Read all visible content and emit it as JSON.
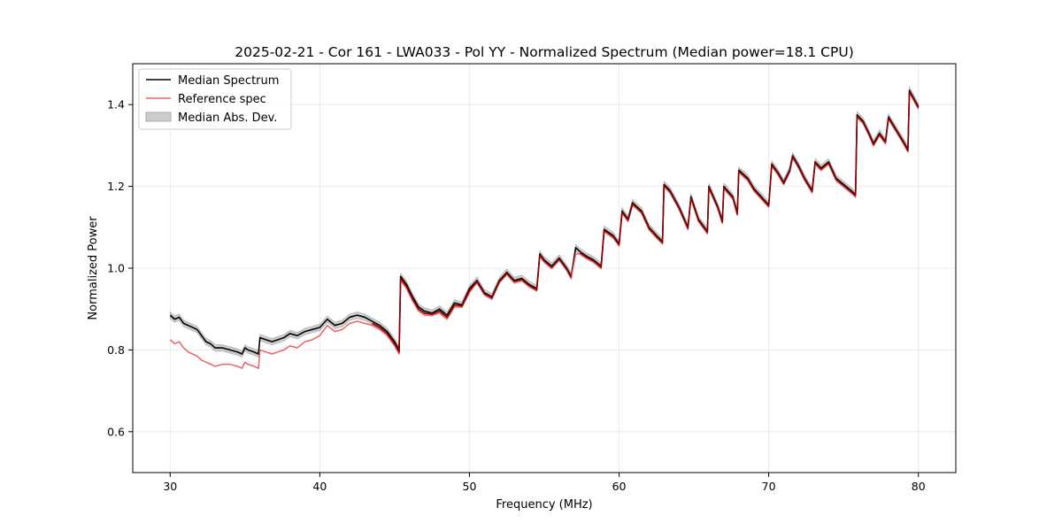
{
  "chart_data": {
    "type": "line",
    "title": "2025-02-21 - Cor 161 - LWA033 - Pol YY - Normalized Spectrum (Median power=18.1 CPU)",
    "xlabel": "Frequency (MHz)",
    "ylabel": "Normalized Power",
    "xlim": [
      27.5,
      82.5
    ],
    "ylim": [
      0.5,
      1.5
    ],
    "xticks": [
      30,
      40,
      50,
      60,
      70,
      80
    ],
    "yticks": [
      0.6,
      0.8,
      1.0,
      1.2,
      1.4
    ],
    "xtick_labels": [
      "30",
      "40",
      "50",
      "60",
      "70",
      "80"
    ],
    "ytick_labels": [
      "0.6",
      "0.8",
      "1.0",
      "1.2",
      "1.4"
    ],
    "grid": true,
    "legend_position": "top-left",
    "series": [
      {
        "name": "Median Spectrum",
        "color": "#000000",
        "x": [
          30.0,
          30.3,
          30.6,
          30.9,
          31.2,
          31.5,
          31.8,
          32.1,
          32.4,
          32.7,
          33.0,
          33.5,
          34.0,
          34.5,
          34.8,
          35.0,
          35.2,
          35.6,
          35.9,
          36.0,
          36.4,
          36.8,
          37.2,
          37.6,
          38.0,
          38.5,
          39.0,
          39.5,
          40.0,
          40.5,
          41.0,
          41.5,
          42.0,
          42.5,
          43.0,
          43.5,
          44.0,
          44.5,
          45.0,
          45.3,
          45.4,
          45.8,
          46.2,
          46.6,
          47.0,
          47.5,
          48.0,
          48.5,
          49.0,
          49.5,
          50.0,
          50.5,
          51.0,
          51.5,
          52.0,
          52.5,
          53.0,
          53.5,
          54.0,
          54.5,
          54.7,
          55.0,
          55.5,
          56.0,
          56.5,
          56.8,
          57.1,
          57.4,
          57.8,
          58.3,
          58.8,
          59.0,
          59.6,
          60.0,
          60.2,
          60.6,
          60.9,
          61.5,
          62.0,
          62.5,
          62.9,
          63.0,
          63.4,
          64.0,
          64.6,
          64.8,
          65.3,
          65.9,
          66.0,
          66.6,
          66.9,
          67.0,
          67.6,
          67.9,
          68.0,
          68.6,
          69.0,
          69.5,
          70.0,
          70.2,
          70.6,
          71.0,
          71.4,
          71.6,
          72.0,
          72.4,
          72.9,
          73.1,
          73.5,
          74.0,
          74.5,
          75.0,
          75.5,
          75.8,
          75.9,
          76.3,
          76.7,
          77.0,
          77.4,
          77.8,
          78.0,
          78.5,
          79.0,
          79.3,
          79.4,
          79.7,
          80.0
        ],
        "values": [
          0.885,
          0.875,
          0.88,
          0.865,
          0.86,
          0.855,
          0.85,
          0.835,
          0.82,
          0.815,
          0.805,
          0.805,
          0.8,
          0.795,
          0.79,
          0.805,
          0.8,
          0.795,
          0.79,
          0.83,
          0.825,
          0.82,
          0.825,
          0.83,
          0.84,
          0.835,
          0.845,
          0.85,
          0.855,
          0.875,
          0.86,
          0.865,
          0.88,
          0.885,
          0.88,
          0.87,
          0.86,
          0.845,
          0.82,
          0.8,
          0.98,
          0.96,
          0.93,
          0.905,
          0.895,
          0.89,
          0.9,
          0.885,
          0.915,
          0.91,
          0.95,
          0.97,
          0.94,
          0.93,
          0.97,
          0.99,
          0.97,
          0.975,
          0.96,
          0.95,
          1.035,
          1.02,
          1.005,
          1.025,
          1.0,
          0.98,
          1.05,
          1.04,
          1.03,
          1.02,
          1.005,
          1.095,
          1.08,
          1.06,
          1.14,
          1.12,
          1.16,
          1.14,
          1.1,
          1.08,
          1.065,
          1.205,
          1.19,
          1.15,
          1.1,
          1.175,
          1.12,
          1.09,
          1.2,
          1.15,
          1.115,
          1.2,
          1.175,
          1.135,
          1.24,
          1.22,
          1.195,
          1.175,
          1.155,
          1.255,
          1.235,
          1.21,
          1.24,
          1.275,
          1.25,
          1.22,
          1.19,
          1.26,
          1.245,
          1.26,
          1.22,
          1.205,
          1.19,
          1.18,
          1.375,
          1.36,
          1.33,
          1.305,
          1.33,
          1.31,
          1.37,
          1.34,
          1.31,
          1.29,
          1.435,
          1.415,
          1.395
        ]
      },
      {
        "name": "Reference spec",
        "color": "#f06060",
        "x": [
          30.0,
          30.3,
          30.6,
          30.9,
          31.2,
          31.5,
          31.8,
          32.1,
          32.4,
          32.7,
          33.0,
          33.5,
          34.0,
          34.5,
          34.8,
          35.0,
          35.2,
          35.6,
          35.9,
          36.0,
          36.4,
          36.8,
          37.2,
          37.6,
          38.0,
          38.5,
          39.0,
          39.5,
          40.0,
          40.5,
          41.0,
          41.5,
          42.0,
          42.5,
          43.0,
          43.5,
          44.0,
          44.5,
          45.0,
          45.3,
          45.4,
          45.8,
          46.2,
          46.6,
          47.0,
          47.5,
          48.0,
          48.5,
          49.0,
          49.5,
          50.0,
          50.5,
          51.0,
          51.5,
          52.0,
          52.5,
          53.0,
          53.5,
          54.0,
          54.5,
          54.7,
          55.0,
          55.5,
          56.0,
          56.5,
          56.8,
          57.1,
          57.4,
          57.8,
          58.3,
          58.8,
          59.0,
          59.6,
          60.0,
          60.2,
          60.6,
          60.9,
          61.5,
          62.0,
          62.5,
          62.9,
          63.0,
          63.4,
          64.0,
          64.6,
          64.8,
          65.3,
          65.9,
          66.0,
          66.6,
          66.9,
          67.0,
          67.6,
          67.9,
          68.0,
          68.6,
          69.0,
          69.5,
          70.0,
          70.2,
          70.6,
          71.0,
          71.4,
          71.6,
          72.0,
          72.4,
          72.9,
          73.1,
          73.5,
          74.0,
          74.5,
          75.0,
          75.5,
          75.8,
          75.9,
          76.3,
          76.7,
          77.0,
          77.4,
          77.8,
          78.0,
          78.5,
          79.0,
          79.3,
          79.4,
          79.7,
          80.0
        ],
        "values": [
          0.825,
          0.815,
          0.82,
          0.805,
          0.795,
          0.79,
          0.785,
          0.775,
          0.77,
          0.765,
          0.76,
          0.765,
          0.765,
          0.76,
          0.755,
          0.77,
          0.765,
          0.76,
          0.755,
          0.8,
          0.795,
          0.79,
          0.795,
          0.8,
          0.81,
          0.805,
          0.82,
          0.825,
          0.835,
          0.86,
          0.845,
          0.85,
          0.865,
          0.87,
          0.865,
          0.86,
          0.85,
          0.835,
          0.81,
          0.79,
          0.97,
          0.95,
          0.92,
          0.895,
          0.885,
          0.885,
          0.89,
          0.875,
          0.905,
          0.905,
          0.94,
          0.965,
          0.935,
          0.925,
          0.965,
          0.985,
          0.965,
          0.97,
          0.955,
          0.945,
          1.03,
          1.015,
          1.0,
          1.02,
          0.995,
          0.975,
          1.035,
          1.035,
          1.025,
          1.015,
          1.0,
          1.09,
          1.075,
          1.055,
          1.135,
          1.115,
          1.155,
          1.135,
          1.095,
          1.075,
          1.06,
          1.2,
          1.185,
          1.145,
          1.095,
          1.17,
          1.115,
          1.085,
          1.195,
          1.145,
          1.11,
          1.195,
          1.17,
          1.13,
          1.235,
          1.215,
          1.19,
          1.17,
          1.15,
          1.25,
          1.23,
          1.205,
          1.235,
          1.27,
          1.245,
          1.215,
          1.185,
          1.255,
          1.24,
          1.255,
          1.215,
          1.2,
          1.185,
          1.175,
          1.37,
          1.355,
          1.325,
          1.3,
          1.325,
          1.305,
          1.365,
          1.335,
          1.305,
          1.285,
          1.43,
          1.41,
          1.39
        ]
      }
    ],
    "band": {
      "name": "Median Abs. Dev.",
      "color": "#aaaaaa",
      "half_width": 0.008
    }
  }
}
